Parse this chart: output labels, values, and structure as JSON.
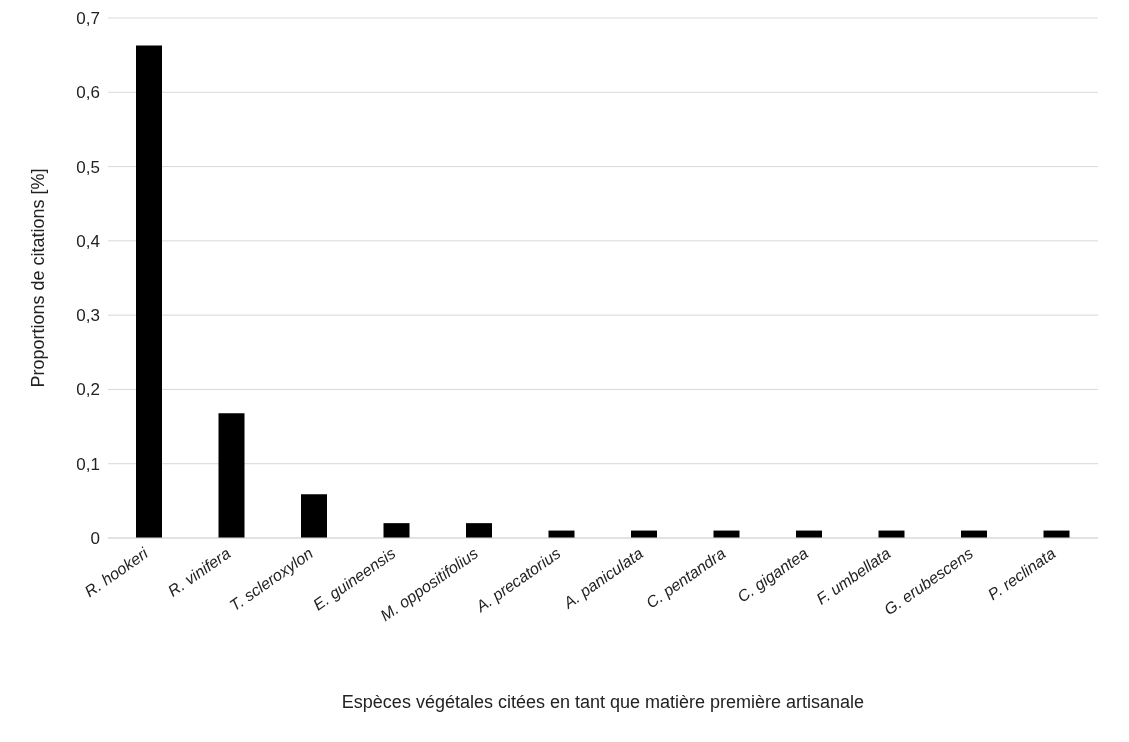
{
  "chart_data": {
    "type": "bar",
    "xlabel": "Espèces végétales citées en tant que matière première artisanale",
    "ylabel": "Proportions de citations [%]",
    "categories": [
      "R. hookeri",
      "R. vinifera",
      "T. scleroxylon",
      "E. guineensis",
      "M. oppositifolius",
      "A. precatorius",
      "A. paniculata",
      "C. pentandra",
      "C. gigantea",
      "F. umbellata",
      "G. erubescens",
      "P. reclinata"
    ],
    "values": [
      0.663,
      0.168,
      0.059,
      0.02,
      0.02,
      0.01,
      0.01,
      0.01,
      0.01,
      0.01,
      0.01,
      0.01
    ],
    "color": "#000000",
    "ylim": [
      0,
      0.7
    ],
    "yticks": [
      {
        "value": 0,
        "label": "0"
      },
      {
        "value": 0.1,
        "label": "0,1"
      },
      {
        "value": 0.2,
        "label": "0,2"
      },
      {
        "value": 0.3,
        "label": "0,3"
      },
      {
        "value": 0.4,
        "label": "0,4"
      },
      {
        "value": 0.5,
        "label": "0,5"
      },
      {
        "value": 0.6,
        "label": "0,6"
      },
      {
        "value": 0.7,
        "label": "0,7"
      }
    ],
    "grid": "y"
  }
}
